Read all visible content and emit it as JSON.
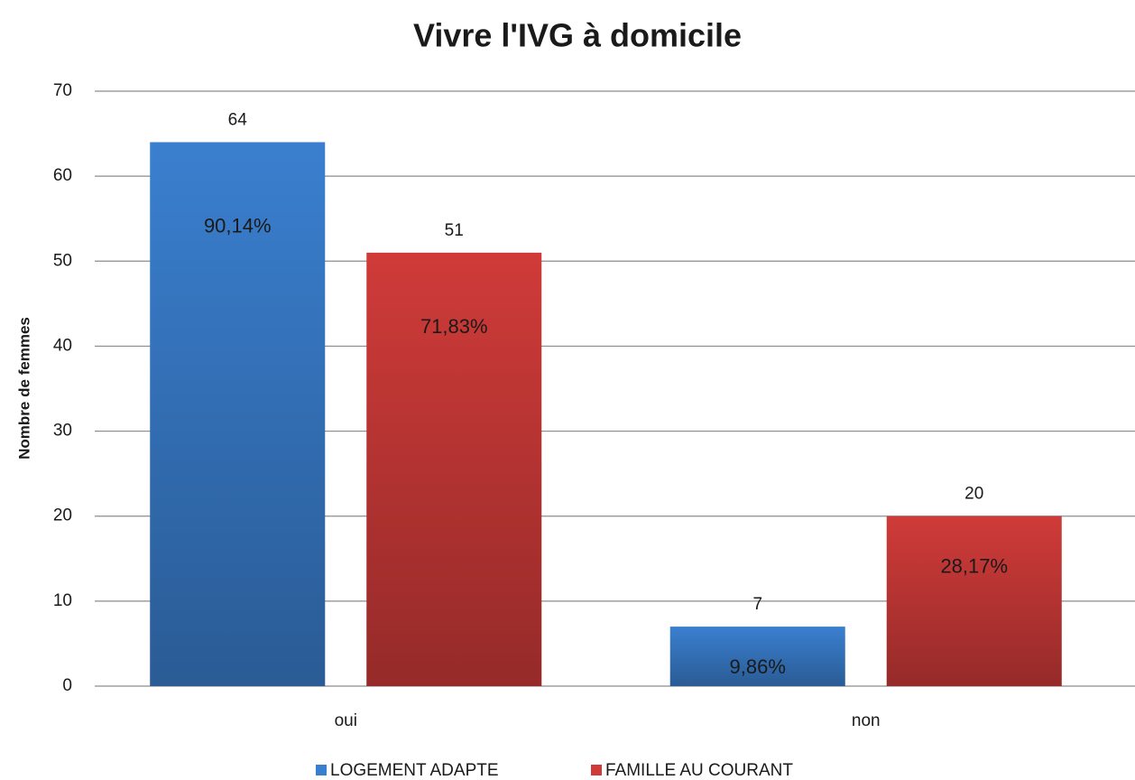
{
  "chart_data": {
    "type": "bar",
    "title": "Vivre l'IVG à domicile",
    "y_label": "Nombre de femmes",
    "categories": [
      "oui",
      "non"
    ],
    "series": [
      {
        "name": "LOGEMENT ADAPTE",
        "color": "#3a7fcf",
        "values": [
          64,
          7
        ],
        "percent_labels": [
          "90,14%",
          "9,86%"
        ]
      },
      {
        "name": "FAMILLE AU COURANT",
        "color": "#cf3b39",
        "values": [
          51,
          20
        ],
        "percent_labels": [
          "71,83%",
          "28,17%"
        ]
      }
    ],
    "ylim": [
      0,
      70
    ],
    "yticks": [
      0,
      10,
      20,
      30,
      40,
      50,
      60,
      70
    ],
    "grid": true,
    "legend": "bottom"
  }
}
